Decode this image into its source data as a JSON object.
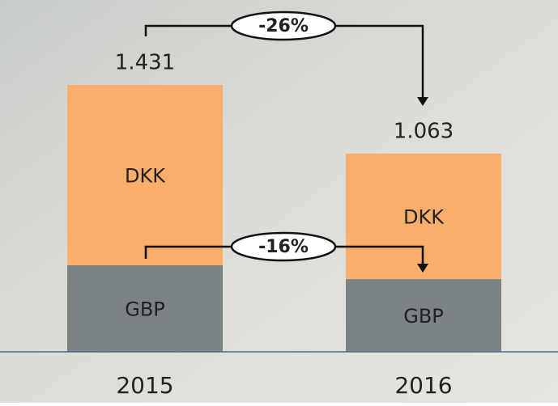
{
  "chart_data": {
    "type": "stacked-bar",
    "categories": [
      "2015",
      "2016"
    ],
    "series": [
      {
        "name": "GBP",
        "color": "#7b8385",
        "values": [
          0.464,
          0.39
        ]
      },
      {
        "name": "DKK",
        "color": "#f9ae6b",
        "values": [
          0.967,
          0.673
        ]
      }
    ],
    "totals": [
      1.431,
      1.063
    ],
    "annotations": [
      "-26%",
      "-16%"
    ]
  }
}
